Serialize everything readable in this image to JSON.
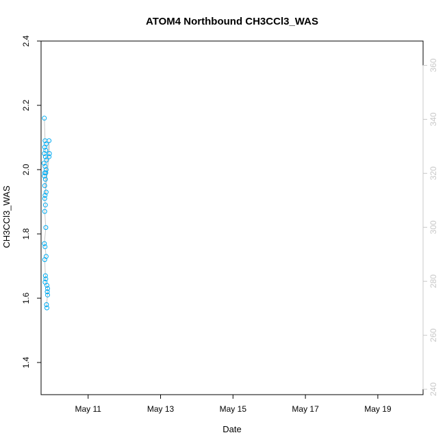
{
  "chart_data": {
    "type": "scatter",
    "title": "ATOM4 Northbound CH3CCl3_WAS",
    "xlabel": "Date",
    "ylabel": "CH3CCl3_WAS",
    "x_ticks": [
      "May 11",
      "May 13",
      "May 15",
      "May 17",
      "May 19"
    ],
    "x_tick_days": [
      11,
      13,
      15,
      17,
      19
    ],
    "xlim_days": [
      9.7,
      20.25
    ],
    "ylim": [
      1.3,
      2.4
    ],
    "y_ticks": [
      1.4,
      1.6,
      1.8,
      2.0,
      2.2,
      2.4
    ],
    "y2lim": [
      238,
      369
    ],
    "y2_ticks": [
      240,
      260,
      280,
      300,
      320,
      340,
      360
    ],
    "grid": false,
    "legend": "none",
    "marker": "open-circle",
    "color_scale": [
      "#00b0f0",
      "#0050ff",
      "#3010e0",
      "#8a00f0",
      "#ff00c8"
    ],
    "line_color": "#c8c8c8",
    "series": [
      {
        "x": [
          9.79,
          9.81,
          9.84,
          9.8,
          9.83,
          9.79,
          9.82,
          9.85,
          9.78,
          9.81,
          9.84,
          9.8,
          9.83,
          9.79,
          9.82,
          9.8,
          9.84,
          9.81,
          9.92,
          9.93,
          9.92,
          9.8,
          9.82,
          9.8,
          9.83,
          9.79,
          9.81,
          9.84,
          9.8,
          9.82,
          9.83,
          9.81,
          9.86,
          9.88,
          9.87,
          9.88,
          9.85,
          9.86
        ],
        "y": [
          2.16,
          2.09,
          2.08,
          2.07,
          2.06,
          2.05,
          2.04,
          2.03,
          2.02,
          2.01,
          2.0,
          1.99,
          1.99,
          1.98,
          1.97,
          1.95,
          1.93,
          1.92,
          2.09,
          2.05,
          2.04,
          1.91,
          1.89,
          1.87,
          1.82,
          1.77,
          1.76,
          1.73,
          1.72,
          1.67,
          1.66,
          1.65,
          1.64,
          1.63,
          1.62,
          1.61,
          1.58,
          1.57
        ]
      }
    ]
  }
}
